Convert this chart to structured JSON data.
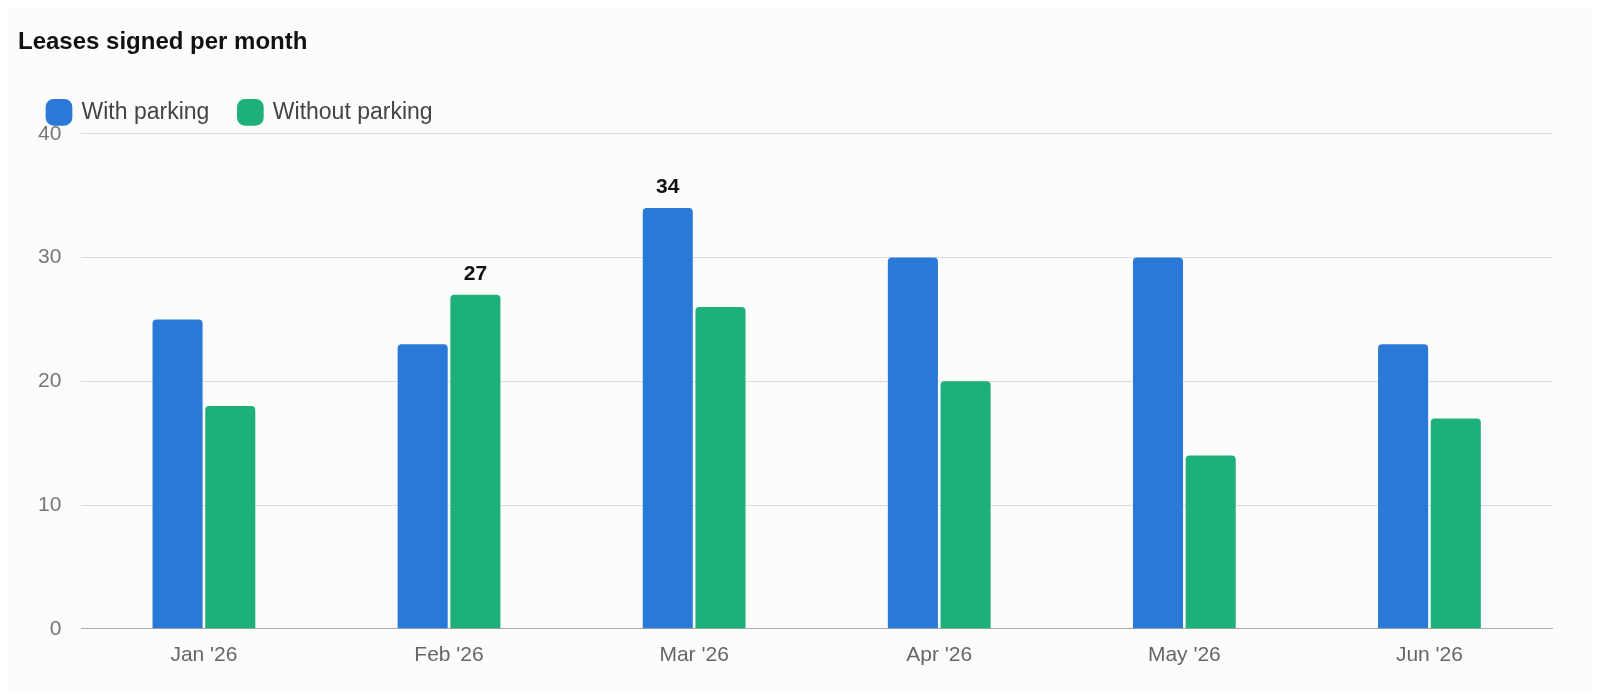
{
  "chart_data": {
    "type": "bar",
    "title": "Leases signed per month",
    "categories": [
      "Jan '26",
      "Feb '26",
      "Mar '26",
      "Apr '26",
      "May '26",
      "Jun '26"
    ],
    "series": [
      {
        "name": "With parking",
        "color": "#2a78d8",
        "values": [
          25,
          23,
          34,
          30,
          30,
          23
        ],
        "value_labels": [
          null,
          null,
          "34",
          null,
          null,
          null
        ]
      },
      {
        "name": "Without parking",
        "color": "#1db07b",
        "values": [
          18,
          27,
          26,
          20,
          14,
          17
        ],
        "value_labels": [
          null,
          "27",
          null,
          null,
          null,
          null
        ]
      }
    ],
    "ylim": [
      0,
      40
    ],
    "yticks": [
      0,
      10,
      20,
      30,
      40
    ],
    "grid": "y",
    "legend": "top left"
  }
}
